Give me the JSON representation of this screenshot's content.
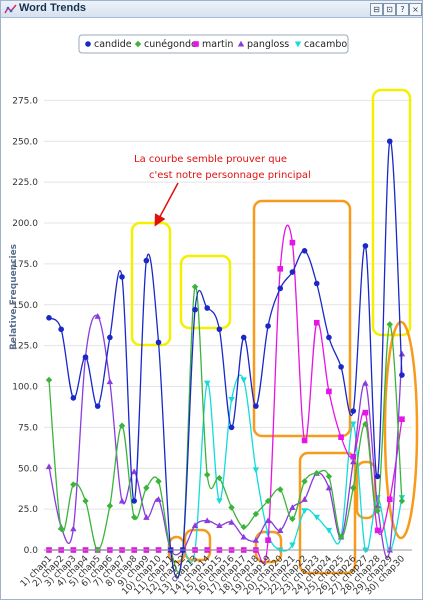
{
  "window": {
    "title": "Word Trends",
    "icon": "chart-line-icon",
    "buttons": [
      "minimize-icon",
      "maximize-icon",
      "help-icon",
      "close-icon"
    ],
    "button_glyphs": [
      "⊟",
      "⊡",
      "?",
      "×"
    ]
  },
  "annotation": {
    "line1": "La courbe semble prouver que",
    "line2": "c'est notre personnage principal",
    "color": "#e01010"
  },
  "chart_data": {
    "type": "line",
    "title": "",
    "xlabel": "",
    "ylabel": "Relative Frequencies",
    "ylim": [
      0,
      275
    ],
    "yticks": [
      "0.0",
      "25.0",
      "50.0",
      "75.0",
      "100.0",
      "125.0",
      "150.0",
      "175.0",
      "200.0",
      "225.0",
      "250.0",
      "275.0"
    ],
    "grid": "horizontal",
    "legend_position": "top",
    "categories": [
      "1) chap1",
      "2) chap2",
      "3) chap3",
      "4) chap4",
      "5) chap5",
      "6) chap6",
      "7) chap7",
      "8) chap8",
      "9) chap9",
      "10) chap10",
      "11) chap11",
      "12) chap12",
      "13) chap13",
      "14) chap14",
      "15) chap15",
      "16) chap16",
      "17) chap17",
      "18) chap18",
      "19) chap19",
      "20) chap20",
      "21) chap21",
      "22) chap22",
      "23) chap23",
      "24) chap24",
      "25) chap25",
      "26) chap26",
      "27) chap27",
      "28) chap28",
      "29) chap29",
      "30) chap30"
    ],
    "series": [
      {
        "name": "candide",
        "color": "#1a28c8",
        "marker": "circle",
        "values": [
          142,
          135,
          93,
          118,
          88,
          130,
          167,
          30,
          177,
          127,
          0,
          0,
          147,
          148,
          135,
          75,
          130,
          88,
          137,
          160,
          170,
          183,
          163,
          130,
          112,
          85,
          186,
          45,
          250,
          107
        ]
      },
      {
        "name": "cunégonde",
        "color": "#3cb43c",
        "marker": "diamond",
        "values": [
          104,
          13,
          40,
          30,
          0,
          27,
          76,
          20,
          38,
          42,
          0,
          0,
          161,
          46,
          44,
          26,
          14,
          22,
          30,
          37,
          19,
          42,
          47,
          45,
          8,
          38,
          77,
          24,
          138,
          30
        ]
      },
      {
        "name": "martin",
        "color": "#e614e6",
        "marker": "square",
        "values": [
          0,
          0,
          0,
          0,
          0,
          0,
          0,
          0,
          0,
          0,
          0,
          0,
          0,
          0,
          0,
          0,
          0,
          0,
          6,
          172,
          188,
          67,
          139,
          97,
          69,
          57,
          84,
          12,
          31,
          80
        ]
      },
      {
        "name": "pangloss",
        "color": "#8a3cdc",
        "marker": "triangle",
        "values": [
          51,
          14,
          13,
          118,
          143,
          103,
          30,
          48,
          20,
          31,
          0,
          0,
          15,
          18,
          15,
          17,
          8,
          6,
          18,
          12,
          26,
          31,
          47,
          38,
          8,
          54,
          102,
          27,
          0,
          120
        ]
      },
      {
        "name": "cacambo",
        "color": "#14dcdc",
        "marker": "inverted-triangle",
        "values": [
          0,
          0,
          0,
          0,
          0,
          0,
          0,
          0,
          0,
          0,
          0,
          0,
          0,
          102,
          30,
          92,
          104,
          49,
          10,
          0,
          3,
          24,
          20,
          12,
          8,
          77,
          0,
          32,
          0,
          32
        ]
      }
    ]
  }
}
